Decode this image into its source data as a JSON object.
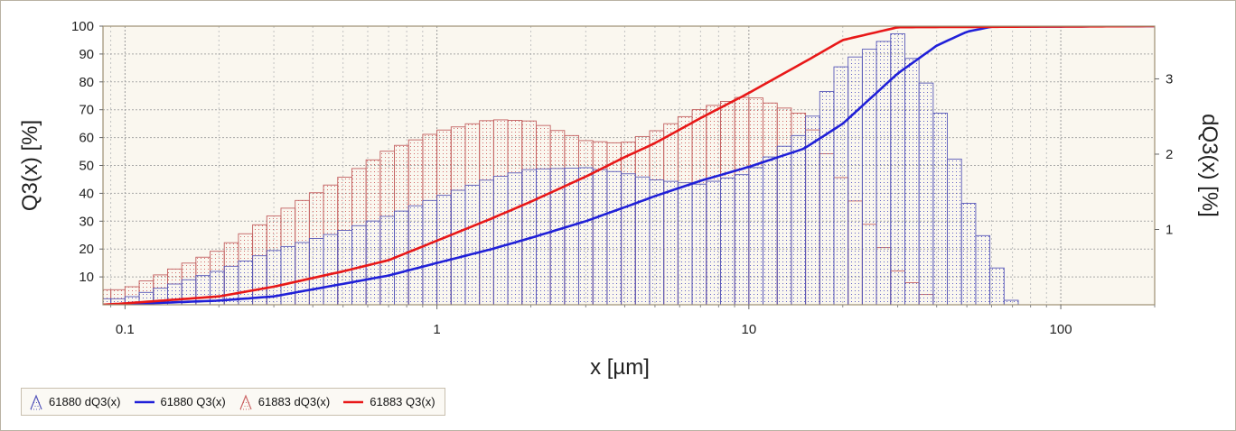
{
  "chart_data": {
    "type": "histogram+line",
    "x_axis": {
      "label": "x [µm]",
      "scale": "log",
      "range": [
        0.085,
        200
      ],
      "ticks": [
        0.1,
        1,
        10,
        100
      ],
      "tick_labels": [
        "0.1",
        "1",
        "10",
        "100"
      ]
    },
    "y_axis_left": {
      "label": "Q3(x) [%]",
      "range": [
        0,
        100
      ],
      "ticks": [
        10,
        20,
        30,
        40,
        50,
        60,
        70,
        80,
        90,
        100
      ],
      "tick_labels": [
        "10",
        "20",
        "30",
        "40",
        "50",
        "60",
        "70",
        "80",
        "90",
        "100"
      ]
    },
    "y_axis_right": {
      "label": "dQ3(x) [%]",
      "range": [
        0,
        3.7
      ],
      "ticks": [
        1,
        2,
        3
      ],
      "tick_labels": [
        "1",
        "2",
        "3"
      ]
    },
    "grid": true,
    "legend_position": "bottom-left",
    "bin_edges": [
      0.1,
      0.2,
      0.3,
      0.5,
      0.7,
      1,
      1.5,
      2,
      3,
      4,
      5,
      7,
      10,
      15,
      20,
      30,
      40,
      50,
      70
    ],
    "series": [
      {
        "name": "61880 dQ3(x)",
        "kind": "histogram",
        "color": "#5555bb",
        "axis": "right",
        "points": [
          [
            0.1,
            0.08
          ],
          [
            0.2,
            0.45
          ],
          [
            0.3,
            0.72
          ],
          [
            0.5,
            0.98
          ],
          [
            0.7,
            1.18
          ],
          [
            1,
            1.42
          ],
          [
            1.5,
            1.68
          ],
          [
            2,
            1.8
          ],
          [
            3,
            1.82
          ],
          [
            4,
            1.75
          ],
          [
            5,
            1.66
          ],
          [
            7,
            1.6
          ],
          [
            10,
            1.75
          ],
          [
            15,
            2.3
          ],
          [
            20,
            3.2
          ],
          [
            30,
            3.6
          ],
          [
            40,
            2.7
          ],
          [
            50,
            1.4
          ],
          [
            70,
            0.02
          ]
        ]
      },
      {
        "name": "61880 Q3(x)",
        "kind": "line",
        "color": "#2020d8",
        "axis": "left",
        "points": [
          [
            0.085,
            0
          ],
          [
            0.1,
            0.2
          ],
          [
            0.2,
            1.5
          ],
          [
            0.3,
            3
          ],
          [
            0.5,
            7.5
          ],
          [
            0.7,
            10.5
          ],
          [
            1,
            15
          ],
          [
            1.5,
            20
          ],
          [
            2,
            24
          ],
          [
            3,
            30
          ],
          [
            4,
            35
          ],
          [
            5,
            39
          ],
          [
            7,
            44.5
          ],
          [
            10,
            49.5
          ],
          [
            15,
            56
          ],
          [
            20,
            65
          ],
          [
            30,
            83
          ],
          [
            40,
            93
          ],
          [
            50,
            98
          ],
          [
            60,
            99.8
          ],
          [
            200,
            100
          ]
        ]
      },
      {
        "name": "61883 dQ3(x)",
        "kind": "histogram",
        "color": "#cc6666",
        "axis": "right",
        "points": [
          [
            0.1,
            0.2
          ],
          [
            0.2,
            0.72
          ],
          [
            0.3,
            1.18
          ],
          [
            0.5,
            1.68
          ],
          [
            0.7,
            2.05
          ],
          [
            1,
            2.3
          ],
          [
            1.5,
            2.46
          ],
          [
            2,
            2.44
          ],
          [
            3,
            2.18
          ],
          [
            4,
            2.14
          ],
          [
            5,
            2.3
          ],
          [
            7,
            2.6
          ],
          [
            10,
            2.78
          ],
          [
            15,
            2.52
          ],
          [
            20,
            1.65
          ],
          [
            30,
            0.45
          ],
          [
            40,
            0.02
          ]
        ]
      },
      {
        "name": "61883 Q3(x)",
        "kind": "line",
        "color": "#e81818",
        "axis": "left",
        "points": [
          [
            0.085,
            0
          ],
          [
            0.1,
            0.5
          ],
          [
            0.2,
            3
          ],
          [
            0.3,
            6.5
          ],
          [
            0.5,
            12
          ],
          [
            0.7,
            16
          ],
          [
            1,
            23
          ],
          [
            1.5,
            31
          ],
          [
            2,
            37
          ],
          [
            3,
            46
          ],
          [
            4,
            53
          ],
          [
            5,
            58
          ],
          [
            7,
            67
          ],
          [
            10,
            76
          ],
          [
            15,
            87
          ],
          [
            20,
            95
          ],
          [
            30,
            99.6
          ],
          [
            200,
            100
          ]
        ]
      }
    ]
  }
}
